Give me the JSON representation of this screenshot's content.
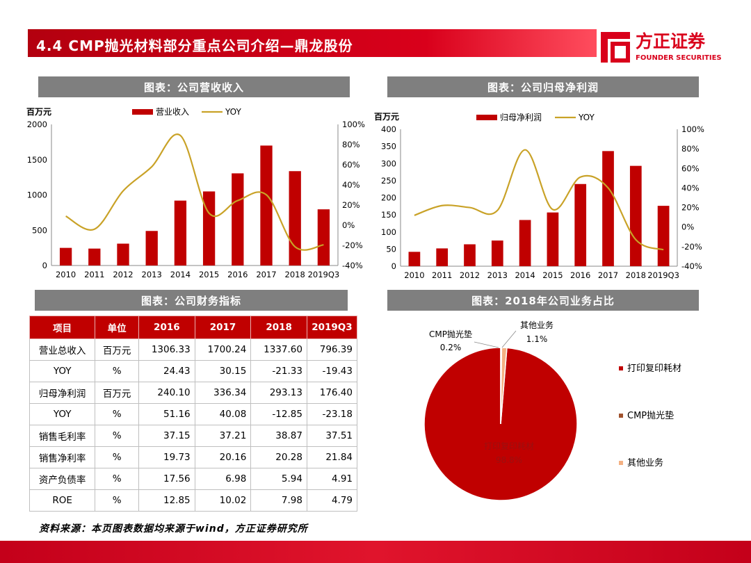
{
  "header": {
    "title": "4.4 CMP抛光材料部分重点公司介绍—鼎龙股份",
    "logo_cn": "方正证券",
    "logo_en": "FOUNDER SECURITIES"
  },
  "panels": {
    "revenue": "图表：公司营收收入",
    "profit": "图表：公司归母净利润",
    "finance": "图表：公司财务指标",
    "share": "图表：2018年公司业务占比"
  },
  "colors": {
    "bar": "#c00000",
    "line": "#c9a227",
    "header_red": "#d9001b",
    "panel_gray": "#7f7f7f",
    "pie_main": "#c00000",
    "pie_cmp": "#a0522d",
    "pie_other": "#f4b183"
  },
  "chart_data": [
    {
      "id": "revenue",
      "type": "bar",
      "unit_label": "百万元",
      "categories": [
        "2010",
        "2011",
        "2012",
        "2013",
        "2014",
        "2015",
        "2016",
        "2017",
        "2018",
        "2019Q3"
      ],
      "series": [
        {
          "name": "营业收入",
          "type": "bar",
          "axis": "left",
          "values": [
            250,
            240,
            310,
            490,
            920,
            1050,
            1306.33,
            1700.24,
            1337.6,
            796.39
          ]
        },
        {
          "name": "YOY",
          "type": "line",
          "axis": "right",
          "values": [
            9,
            -4,
            34,
            58,
            89,
            12,
            24.43,
            30.15,
            -21.33,
            -19.43
          ]
        }
      ],
      "ylim": [
        0,
        2000
      ],
      "yticks": [
        0,
        500,
        1000,
        1500,
        2000
      ],
      "y2lim": [
        -40,
        100
      ],
      "y2ticks": [
        "-40%",
        "-20%",
        "0%",
        "20%",
        "40%",
        "60%",
        "80%",
        "100%"
      ],
      "legend": "top"
    },
    {
      "id": "profit",
      "type": "bar",
      "unit_label": "百万元",
      "categories": [
        "2010",
        "2011",
        "2012",
        "2013",
        "2014",
        "2015",
        "2016",
        "2017",
        "2018",
        "2019Q3"
      ],
      "series": [
        {
          "name": "归母净利润",
          "type": "bar",
          "axis": "left",
          "values": [
            42,
            52,
            64,
            75,
            135,
            157,
            240.1,
            336.34,
            293.13,
            176.4
          ]
        },
        {
          "name": "YOY",
          "type": "line",
          "axis": "right",
          "values": [
            12,
            22,
            20,
            17,
            79,
            18,
            51.16,
            40.08,
            -12.85,
            -23.18
          ]
        }
      ],
      "ylim": [
        0,
        400
      ],
      "yticks": [
        0,
        50,
        100,
        150,
        200,
        250,
        300,
        350,
        400
      ],
      "y2lim": [
        -40,
        100
      ],
      "y2ticks": [
        "-40%",
        "-20%",
        "0%",
        "20%",
        "40%",
        "60%",
        "80%",
        "100%"
      ],
      "legend": "top"
    },
    {
      "id": "share",
      "type": "pie",
      "labels": [
        "打印复印耗材",
        "CMP抛光垫",
        "其他业务"
      ],
      "values": [
        98.8,
        0.2,
        1.1
      ],
      "value_labels": [
        "98.8%",
        "0.2%",
        "1.1%"
      ],
      "legend": "right"
    }
  ],
  "table": {
    "headers": [
      "项目",
      "单位",
      "2016",
      "2017",
      "2018",
      "2019Q3"
    ],
    "rows": [
      [
        "营业总收入",
        "百万元",
        "1306.33",
        "1700.24",
        "1337.60",
        "796.39"
      ],
      [
        "YOY",
        "%",
        "24.43",
        "30.15",
        "-21.33",
        "-19.43"
      ],
      [
        "归母净利润",
        "百万元",
        "240.10",
        "336.34",
        "293.13",
        "176.40"
      ],
      [
        "YOY",
        "%",
        "51.16",
        "40.08",
        "-12.85",
        "-23.18"
      ],
      [
        "销售毛利率",
        "%",
        "37.15",
        "37.21",
        "38.87",
        "37.51"
      ],
      [
        "销售净利率",
        "%",
        "19.73",
        "20.16",
        "20.28",
        "21.84"
      ],
      [
        "资产负债率",
        "%",
        "17.56",
        "6.98",
        "5.94",
        "4.91"
      ],
      [
        "ROE",
        "%",
        "12.85",
        "10.02",
        "7.98",
        "4.79"
      ]
    ]
  },
  "source": "资料来源：本页图表数据均来源于wind，方正证券研究所"
}
